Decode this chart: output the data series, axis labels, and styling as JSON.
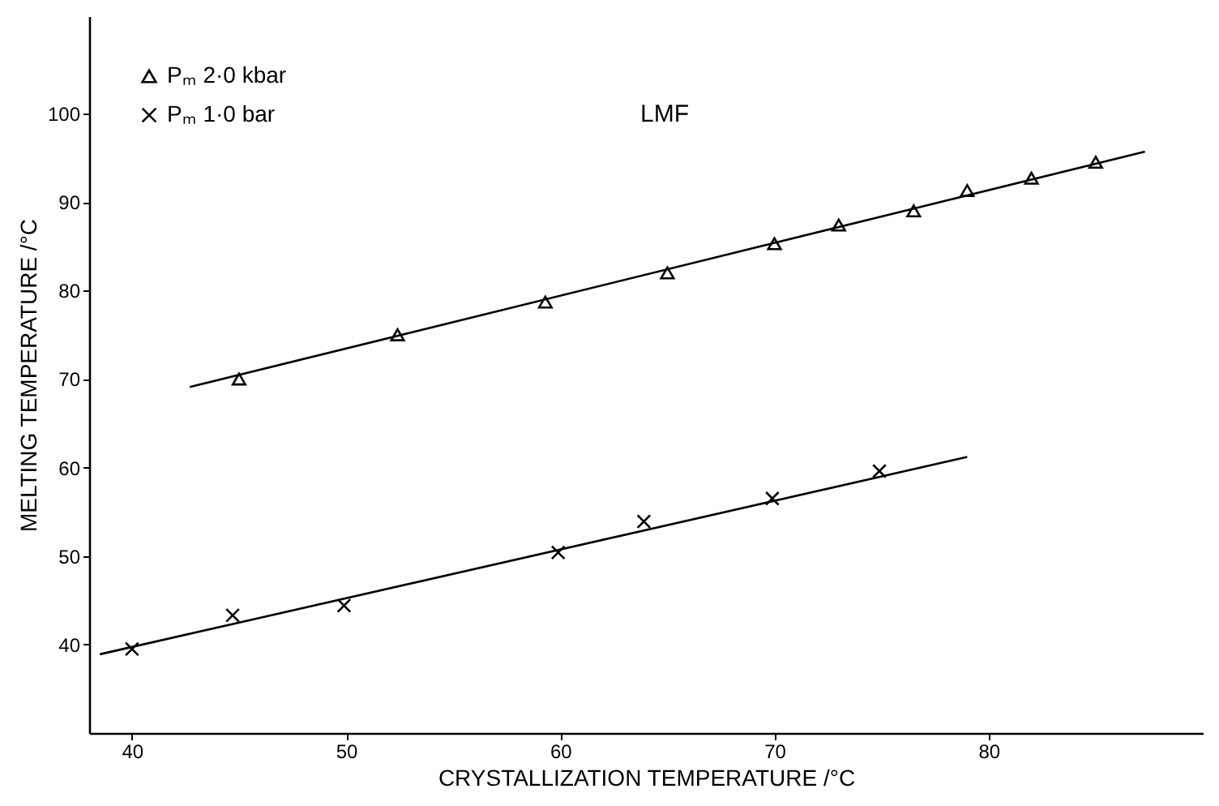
{
  "chart_data": {
    "type": "scatter",
    "xlabel": "CRYSTALLIZATION TEMPERATURE  /°C",
    "ylabel": "MELTING TEMPERATURE  /°C",
    "annotations": [
      "LMF"
    ],
    "xlim": [
      38,
      90
    ],
    "ylim": [
      30,
      111
    ],
    "xticks": [
      40,
      50,
      60,
      70,
      80
    ],
    "yticks": [
      40,
      50,
      60,
      70,
      80,
      90,
      100
    ],
    "legend": "top left",
    "series": [
      {
        "name": "Pₘ  2·0 kbar",
        "marker": "triangle",
        "color": "#000000",
        "x": [
          45,
          52.4,
          59.3,
          65,
          70,
          73,
          76.5,
          79,
          82,
          85
        ],
        "values": [
          70,
          75,
          78.7,
          82,
          85.3,
          87.4,
          89,
          91.3,
          92.7,
          94.5
        ]
      },
      {
        "name": "Pₘ  1·0  bar",
        "marker": "cross",
        "color": "#000000",
        "x": [
          40,
          44.7,
          49.9,
          59.9,
          63.9,
          69.9,
          74.9
        ],
        "values": [
          39.5,
          43.3,
          44.4,
          50.4,
          53.9,
          56.5,
          59.6
        ]
      },
      {
        "type": "line",
        "color": "#000000",
        "x": [
          42.7,
          87.3
        ],
        "values": [
          69.1,
          95.7
        ]
      },
      {
        "type": "line",
        "color": "#000000",
        "x": [
          38.5,
          79
        ],
        "values": [
          38.9,
          61.2
        ]
      }
    ]
  }
}
